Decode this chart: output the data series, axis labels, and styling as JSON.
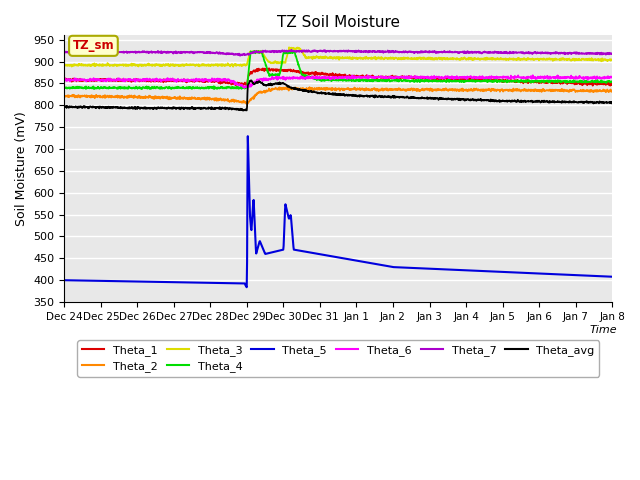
{
  "title": "TZ Soil Moisture",
  "ylabel": "Soil Moisture (mV)",
  "xlabel": "Time",
  "ylim": [
    350,
    960
  ],
  "yticks": [
    350,
    400,
    450,
    500,
    550,
    600,
    650,
    700,
    750,
    800,
    850,
    900,
    950
  ],
  "bg_color": "#e8e8e8",
  "legend_box_color": "#ffffcc",
  "legend_box_edge": "#aaaa00",
  "annotation_text": "TZ_sm",
  "annotation_color": "#cc0000",
  "x_tick_labels": [
    "Dec 24",
    "Dec 25",
    "Dec 26",
    "Dec 27",
    "Dec 28",
    "Dec 29",
    "Dec 30",
    "Dec 31",
    "Jan 1",
    "Jan 2",
    "Jan 3",
    "Jan 4",
    "Jan 5",
    "Jan 6",
    "Jan 7",
    "Jan 8"
  ],
  "colors": {
    "Theta_1": "#dd0000",
    "Theta_2": "#ff8800",
    "Theta_3": "#dddd00",
    "Theta_4": "#00dd00",
    "Theta_5": "#0000dd",
    "Theta_6": "#ff00ff",
    "Theta_7": "#aa00cc",
    "Theta_avg": "#000000"
  }
}
